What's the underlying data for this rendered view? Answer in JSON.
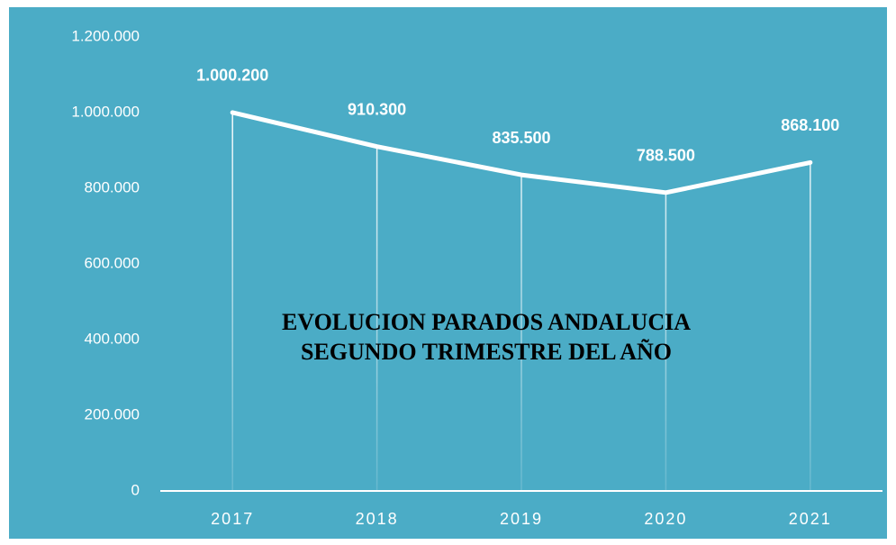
{
  "chart_data": {
    "type": "line",
    "title": [
      "EVOLUCION PARADOS ANDALUCIA",
      "SEGUNDO TRIMESTRE DEL AÑO"
    ],
    "categories": [
      "2017",
      "2018",
      "2019",
      "2020",
      "2021"
    ],
    "values": [
      1000200,
      910300,
      835500,
      788500,
      868100
    ],
    "value_labels": [
      "1.000.200",
      "910.300",
      "835.500",
      "788.500",
      "868.100"
    ],
    "color": "#ffffff",
    "ylim": [
      0,
      1200000
    ],
    "yticks": [
      0,
      {
        "value": 200000,
        "label": "200.000"
      },
      {
        "value": 400000,
        "label": "400.000"
      },
      {
        "value": 600000,
        "label": "600.000"
      },
      {
        "value": 800000,
        "label": "800.000"
      },
      {
        "value": 1000000,
        "label": "1.000.000"
      },
      {
        "value": 1200000,
        "label": "1.200.000"
      }
    ],
    "grid": false
  }
}
